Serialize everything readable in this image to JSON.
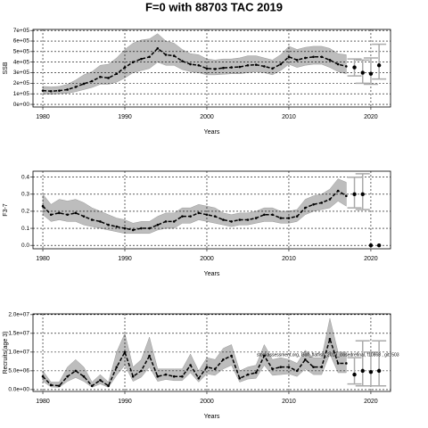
{
  "title": "F=0 with 88703 TAC 2019",
  "chart_data": [
    {
      "type": "line",
      "ylabel": "SSB",
      "xlabel": "Years",
      "grid": true,
      "xlim": [
        1978.8,
        2022.4
      ],
      "xticks": [
        1980,
        1990,
        2000,
        2010,
        2020
      ],
      "ylim": [
        -25000,
        710000
      ],
      "yticks": [
        {
          "value": 0,
          "label": "0e+00"
        },
        {
          "value": 100000,
          "label": "1e+05"
        },
        {
          "value": 200000,
          "label": "2e+05"
        },
        {
          "value": 300000,
          "label": "3e+05"
        },
        {
          "value": 400000,
          "label": "4e+05"
        },
        {
          "value": 500000,
          "label": "5e+05"
        },
        {
          "value": 600000,
          "label": "6e+05"
        },
        {
          "value": 700000,
          "label": "7e+05"
        }
      ],
      "x": [
        1980,
        1981,
        1982,
        1983,
        1984,
        1985,
        1986,
        1987,
        1988,
        1989,
        1990,
        1991,
        1992,
        1993,
        1994,
        1995,
        1996,
        1997,
        1998,
        1999,
        2000,
        2001,
        2002,
        2003,
        2004,
        2005,
        2006,
        2007,
        2008,
        2009,
        2010,
        2011,
        2012,
        2013,
        2014,
        2015,
        2016,
        2017
      ],
      "color": "#000000",
      "band_color": "#bdbdbd",
      "values": [
        130000,
        125000,
        130000,
        140000,
        165000,
        195000,
        220000,
        260000,
        250000,
        290000,
        350000,
        400000,
        430000,
        450000,
        530000,
        470000,
        460000,
        410000,
        380000,
        370000,
        340000,
        335000,
        345000,
        350000,
        355000,
        370000,
        375000,
        360000,
        340000,
        380000,
        450000,
        420000,
        440000,
        450000,
        450000,
        420000,
        380000,
        360000
      ],
      "upper": [
        170000,
        165000,
        170000,
        190000,
        230000,
        280000,
        310000,
        370000,
        380000,
        440000,
        520000,
        580000,
        610000,
        620000,
        670000,
        600000,
        580000,
        520000,
        480000,
        470000,
        430000,
        420000,
        430000,
        430000,
        440000,
        460000,
        460000,
        440000,
        420000,
        470000,
        550000,
        520000,
        540000,
        550000,
        550000,
        530000,
        480000,
        470000
      ],
      "lower": [
        100000,
        95000,
        100000,
        105000,
        120000,
        140000,
        160000,
        190000,
        190000,
        210000,
        250000,
        300000,
        320000,
        340000,
        400000,
        370000,
        370000,
        330000,
        310000,
        300000,
        280000,
        280000,
        285000,
        290000,
        290000,
        300000,
        310000,
        300000,
        280000,
        320000,
        380000,
        350000,
        370000,
        380000,
        380000,
        350000,
        310000,
        290000
      ],
      "projection": {
        "color": "#aaaaaa",
        "x": [
          2018,
          2019,
          2020,
          2021
        ],
        "values": [
          350000,
          300000,
          290000,
          370000
        ],
        "lower": [
          270000,
          200000,
          190000,
          240000
        ],
        "upper": [
          430000,
          420000,
          440000,
          570000
        ]
      }
    },
    {
      "type": "line",
      "ylabel": "F3-7",
      "xlabel": "Years",
      "grid": true,
      "xlim": [
        1978.8,
        2022.4
      ],
      "xticks": [
        1980,
        1990,
        2000,
        2010,
        2020
      ],
      "ylim": [
        -0.02,
        0.435
      ],
      "yticks": [
        {
          "value": 0,
          "label": "0.0"
        },
        0.1,
        0.2,
        0.3,
        0.4
      ],
      "x": [
        1980,
        1981,
        1982,
        1983,
        1984,
        1985,
        1986,
        1987,
        1988,
        1989,
        1990,
        1991,
        1992,
        1993,
        1994,
        1995,
        1996,
        1997,
        1998,
        1999,
        2000,
        2001,
        2002,
        2003,
        2004,
        2005,
        2006,
        2007,
        2008,
        2009,
        2010,
        2011,
        2012,
        2013,
        2014,
        2015,
        2016,
        2017
      ],
      "color": "#000000",
      "band_color": "#bdbdbd",
      "values": [
        0.23,
        0.18,
        0.19,
        0.18,
        0.19,
        0.17,
        0.15,
        0.14,
        0.12,
        0.11,
        0.1,
        0.09,
        0.1,
        0.1,
        0.12,
        0.14,
        0.14,
        0.17,
        0.17,
        0.19,
        0.18,
        0.17,
        0.15,
        0.14,
        0.15,
        0.15,
        0.16,
        0.18,
        0.18,
        0.16,
        0.16,
        0.17,
        0.22,
        0.24,
        0.25,
        0.27,
        0.32,
        0.29
      ],
      "upper": [
        0.3,
        0.24,
        0.27,
        0.26,
        0.27,
        0.25,
        0.22,
        0.2,
        0.18,
        0.16,
        0.15,
        0.13,
        0.14,
        0.14,
        0.17,
        0.19,
        0.19,
        0.22,
        0.22,
        0.24,
        0.23,
        0.22,
        0.19,
        0.18,
        0.19,
        0.19,
        0.2,
        0.22,
        0.22,
        0.2,
        0.2,
        0.21,
        0.27,
        0.29,
        0.3,
        0.33,
        0.39,
        0.37
      ],
      "lower": [
        0.18,
        0.14,
        0.15,
        0.14,
        0.14,
        0.12,
        0.11,
        0.1,
        0.09,
        0.08,
        0.07,
        0.07,
        0.07,
        0.07,
        0.09,
        0.1,
        0.1,
        0.13,
        0.13,
        0.15,
        0.14,
        0.13,
        0.12,
        0.11,
        0.12,
        0.12,
        0.13,
        0.14,
        0.14,
        0.13,
        0.13,
        0.14,
        0.18,
        0.2,
        0.21,
        0.22,
        0.26,
        0.23
      ],
      "projection": {
        "color": "#aaaaaa",
        "x": [
          2018,
          2019,
          2020,
          2021
        ],
        "values": [
          0.3,
          0.3,
          0,
          0
        ],
        "lower": [
          0.22,
          0.21,
          null,
          null
        ],
        "upper": [
          0.4,
          0.42,
          null,
          null
        ]
      }
    },
    {
      "type": "line",
      "ylabel": "Recruits(age 3)",
      "xlabel": "Years",
      "grid": true,
      "annotation": "stockassessment.org, Golf_flatfish_2019_closedrefinal, f10868 , git: 503",
      "xlim": [
        1978.8,
        2022.4
      ],
      "xticks": [
        1980,
        1990,
        2000,
        2010,
        2020
      ],
      "ylim": [
        -500000,
        20200000
      ],
      "yticks": [
        {
          "value": 0,
          "label": "0.0e+00"
        },
        {
          "value": 5000000,
          "label": "5.0e+06"
        },
        {
          "value": 10000000,
          "label": "1.0e+07"
        },
        {
          "value": 15000000,
          "label": "1.5e+07"
        },
        {
          "value": 20000000,
          "label": "2.0e+07"
        }
      ],
      "x": [
        1980,
        1981,
        1982,
        1983,
        1984,
        1985,
        1986,
        1987,
        1988,
        1989,
        1990,
        1991,
        1992,
        1993,
        1994,
        1995,
        1996,
        1997,
        1998,
        1999,
        2000,
        2001,
        2002,
        2003,
        2004,
        2005,
        2006,
        2007,
        2008,
        2009,
        2010,
        2011,
        2012,
        2013,
        2014,
        2015,
        2016,
        2017
      ],
      "color": "#000000",
      "band_color": "#bdbdbd",
      "values": [
        3500000,
        1200000,
        1000000,
        3500000,
        5000000,
        3500000,
        1000000,
        2500000,
        1000000,
        6000000,
        10000000,
        3500000,
        5000000,
        9000000,
        3500000,
        4000000,
        3500000,
        3500000,
        6500000,
        3000000,
        6000000,
        5500000,
        8000000,
        9000000,
        3000000,
        4000000,
        4500000,
        9000000,
        5500000,
        6000000,
        6000000,
        5000000,
        8000000,
        6000000,
        6000000,
        13500000,
        7000000,
        7000000
      ],
      "upper": [
        5000000,
        2000000,
        2000000,
        6000000,
        8000000,
        6000000,
        2000000,
        4000000,
        2000000,
        10000000,
        15000000,
        6000000,
        8000000,
        14000000,
        5500000,
        5500000,
        5500000,
        5500000,
        9500000,
        5000000,
        8500000,
        8000000,
        11000000,
        12000000,
        5000000,
        6000000,
        6500000,
        12000000,
        8000000,
        8500000,
        8000000,
        7000000,
        10500000,
        8500000,
        8500000,
        19000000,
        10000000,
        10000000
      ],
      "lower": [
        2200000,
        700000,
        600000,
        2200000,
        3200000,
        2200000,
        600000,
        1500000,
        600000,
        3800000,
        6500000,
        2200000,
        3300000,
        6000000,
        2200000,
        2700000,
        2400000,
        2400000,
        4500000,
        2000000,
        4200000,
        3800000,
        5500000,
        6500000,
        2000000,
        2800000,
        3000000,
        6500000,
        3800000,
        4000000,
        4200000,
        3500000,
        5500000,
        4000000,
        4000000,
        9500000,
        4500000,
        4500000
      ],
      "projection": {
        "color": "#aaaaaa",
        "x": [
          2018,
          2019,
          2020,
          2021
        ],
        "values": [
          4000000,
          5000000,
          4700000,
          5000000
        ],
        "lower": [
          1500000,
          1000000,
          1000000,
          1000000
        ],
        "upper": [
          8500000,
          13000000,
          10000000,
          13000000
        ]
      }
    }
  ]
}
